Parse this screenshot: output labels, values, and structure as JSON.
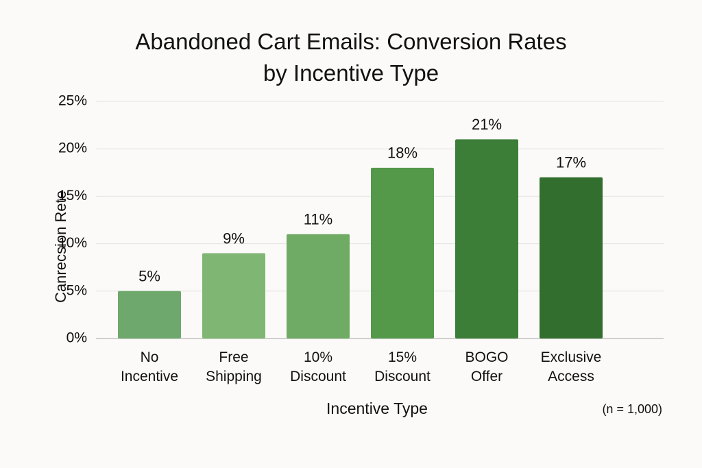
{
  "chart_data": {
    "type": "bar",
    "title": "Abandoned Cart Emails: Conversion Rates\nby Incentive Type",
    "x_label": "Incentive Type",
    "y_label": "Canrecsion Rete",
    "annotation": "(n = 1,000)",
    "categories": [
      "No\nIncentive",
      "Free\nShipping",
      "10%\nDiscount",
      "15%\nDiscount",
      "BOGO\nOffer",
      "Exclusive\nAccess"
    ],
    "values": [
      5,
      9,
      11,
      18,
      21,
      17
    ],
    "value_labels": [
      "5%",
      "9%",
      "11%",
      "18%",
      "21%",
      "17%"
    ],
    "colors": [
      "#6fa86c",
      "#80b673",
      "#6fab65",
      "#54984a",
      "#3c7d37",
      "#326e2e"
    ],
    "ylim": [
      0,
      25
    ],
    "yticks": [
      {
        "value": 0,
        "label": "0%"
      },
      {
        "value": 5,
        "label": "5%"
      },
      {
        "value": 10,
        "label": "10%"
      },
      {
        "value": 15,
        "label": "15%"
      },
      {
        "value": 20,
        "label": "20%"
      },
      {
        "value": 25,
        "label": "25%"
      }
    ],
    "grid": true
  }
}
